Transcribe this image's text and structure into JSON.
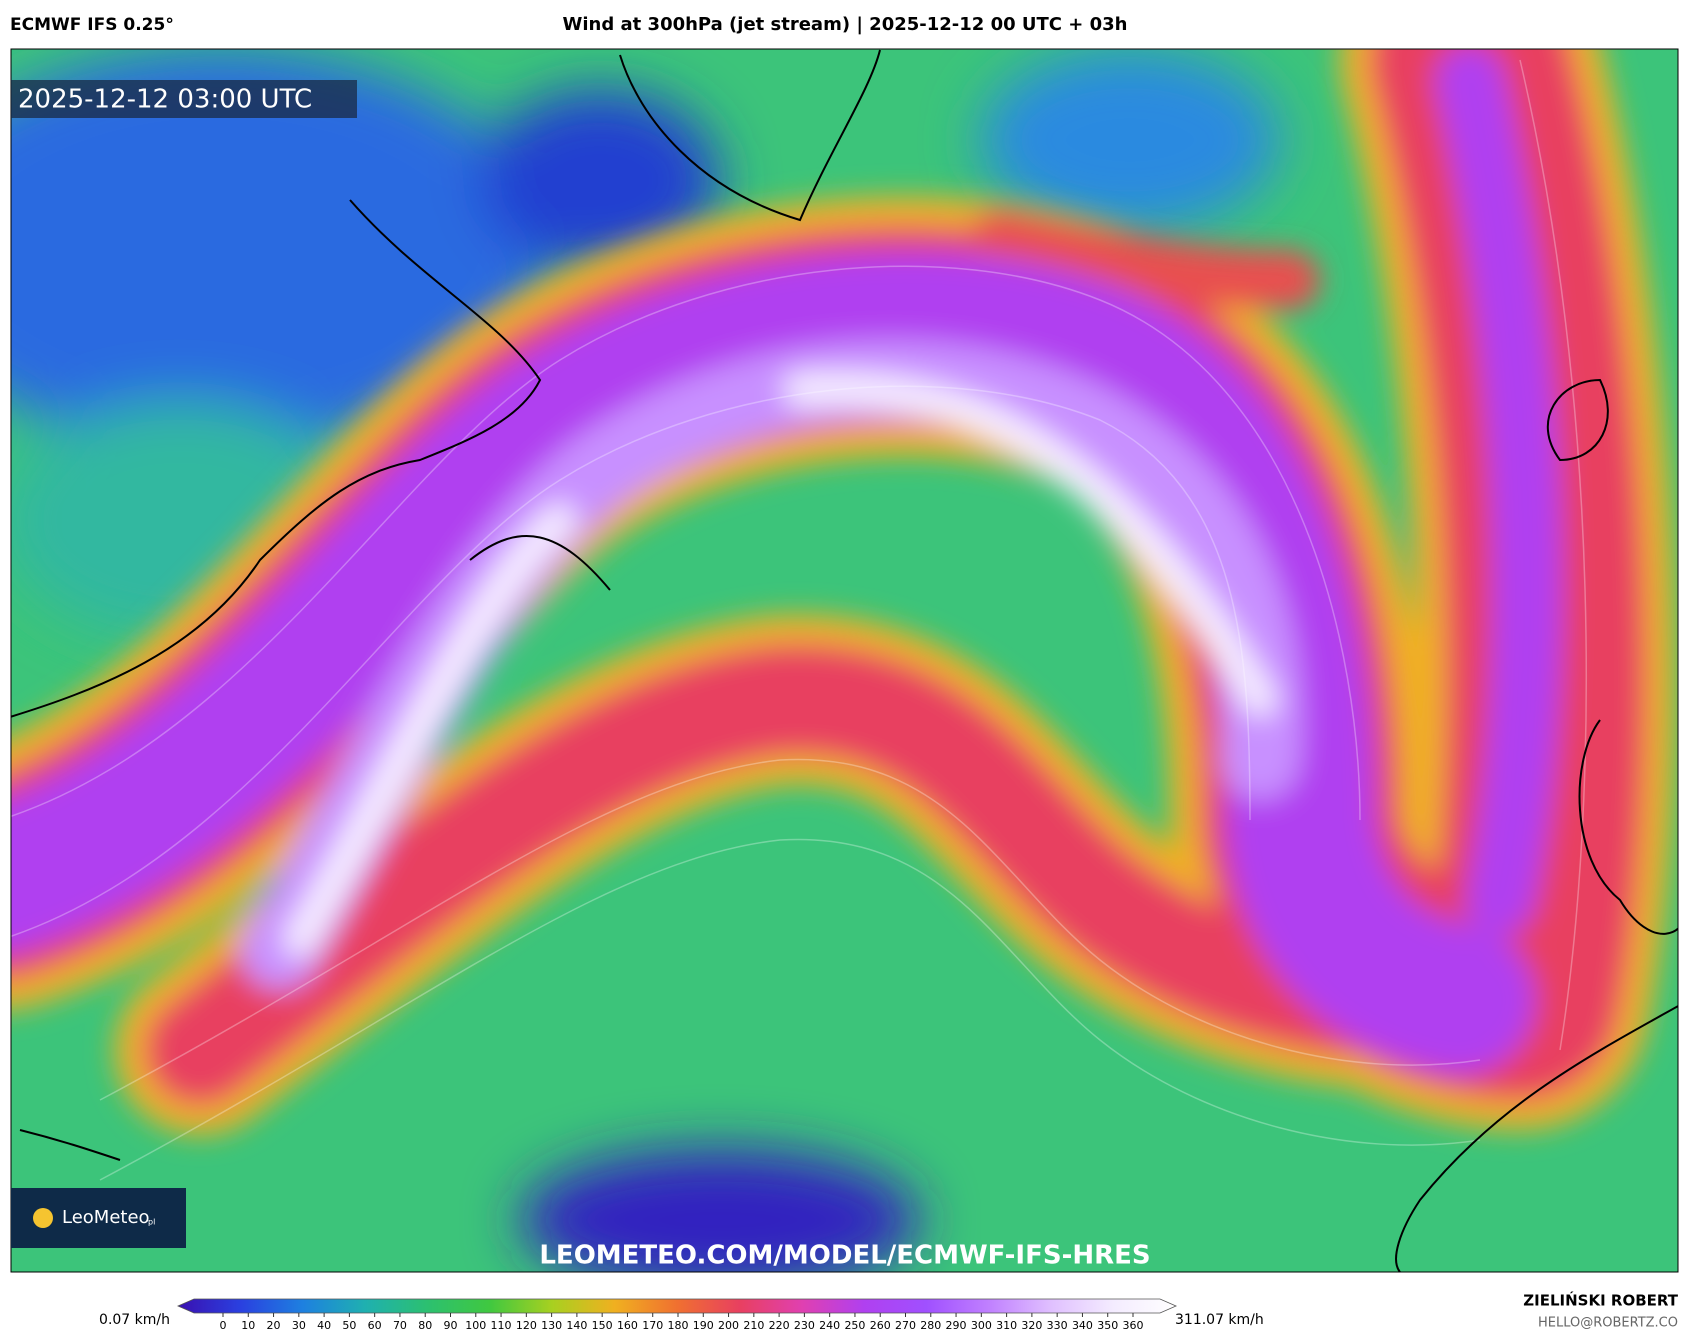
{
  "header": {
    "model": "ECMWF IFS 0.25°",
    "title": "Wind at 300hPa (jet stream) | 2025-12-12 00 UTC + 03h"
  },
  "map": {
    "timestamp": "2025-12-12 03:00 UTC",
    "logo": "LeoMeteo",
    "logo_suffix": "pl",
    "url": "LEOMETEO.COM/MODEL/ECMWF-IFS-HRES"
  },
  "colorbar": {
    "min_label": "0.07 km/h",
    "max_label": "311.07 km/h",
    "ticks": [
      0,
      10,
      20,
      30,
      40,
      50,
      60,
      70,
      80,
      90,
      100,
      110,
      120,
      130,
      140,
      150,
      160,
      170,
      180,
      190,
      200,
      210,
      220,
      230,
      240,
      250,
      260,
      270,
      280,
      290,
      300,
      310,
      320,
      330,
      340,
      350,
      360
    ],
    "colors": [
      "#3a10b0",
      "#2a40e0",
      "#1e80e0",
      "#1fb0b0",
      "#2cc070",
      "#40c840",
      "#a8d020",
      "#f0b020",
      "#f07030",
      "#e84060",
      "#e040b0",
      "#b040f0",
      "#a050ff",
      "#c080ff",
      "#e0c0ff",
      "#f4ecff",
      "#ffffff"
    ]
  },
  "credits": {
    "author": "ZIELIŃSKI ROBERT",
    "email": "HELLO@ROBERTZ.CO"
  }
}
